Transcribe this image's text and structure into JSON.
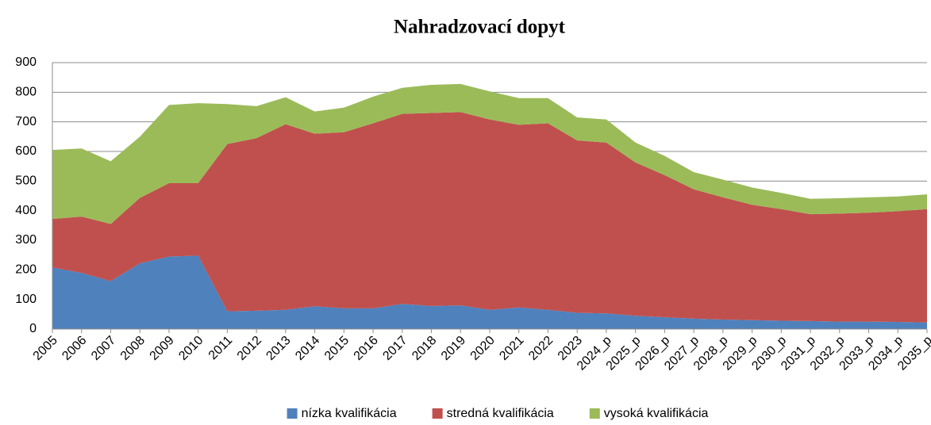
{
  "chart_data": {
    "type": "stacked_area",
    "title": "Nahradzovací dopyt",
    "categories": [
      "2005",
      "2006",
      "2007",
      "2008",
      "2009",
      "2010",
      "2011",
      "2012",
      "2013",
      "2014",
      "2015",
      "2016",
      "2017",
      "2018",
      "2019",
      "2020",
      "2021",
      "2022",
      "2023",
      "2024_p",
      "2025_p",
      "2026_p",
      "2027_p",
      "2028_p",
      "2029_p",
      "2030_p",
      "2031_p",
      "2032_p",
      "2033_p",
      "2034_p",
      "2035_p"
    ],
    "series": [
      {
        "name": "nízka kvalifikácia",
        "color": "#4f81bd",
        "values": [
          208,
          190,
          162,
          222,
          245,
          248,
          60,
          62,
          65,
          77,
          70,
          70,
          85,
          78,
          80,
          65,
          73,
          65,
          55,
          53,
          45,
          40,
          35,
          32,
          30,
          28,
          27,
          25,
          25,
          24,
          22
        ]
      },
      {
        "name": "stredná kvalifikácia",
        "color": "#c0504d",
        "values": [
          164,
          190,
          193,
          221,
          248,
          245,
          565,
          583,
          627,
          583,
          595,
          625,
          642,
          652,
          653,
          643,
          617,
          630,
          582,
          577,
          518,
          480,
          437,
          413,
          390,
          377,
          361,
          365,
          368,
          374,
          383
        ]
      },
      {
        "name": "vysoká kvalifikácia",
        "color": "#9bbb59",
        "values": [
          233,
          230,
          212,
          207,
          264,
          270,
          135,
          108,
          91,
          75,
          83,
          90,
          88,
          95,
          95,
          95,
          90,
          85,
          78,
          78,
          67,
          65,
          58,
          60,
          58,
          55,
          52,
          52,
          52,
          50,
          50
        ]
      }
    ],
    "ylim": [
      0,
      900
    ],
    "yticks": [
      0,
      100,
      200,
      300,
      400,
      500,
      600,
      700,
      800,
      900
    ],
    "grid": true,
    "legend": "bottom"
  }
}
